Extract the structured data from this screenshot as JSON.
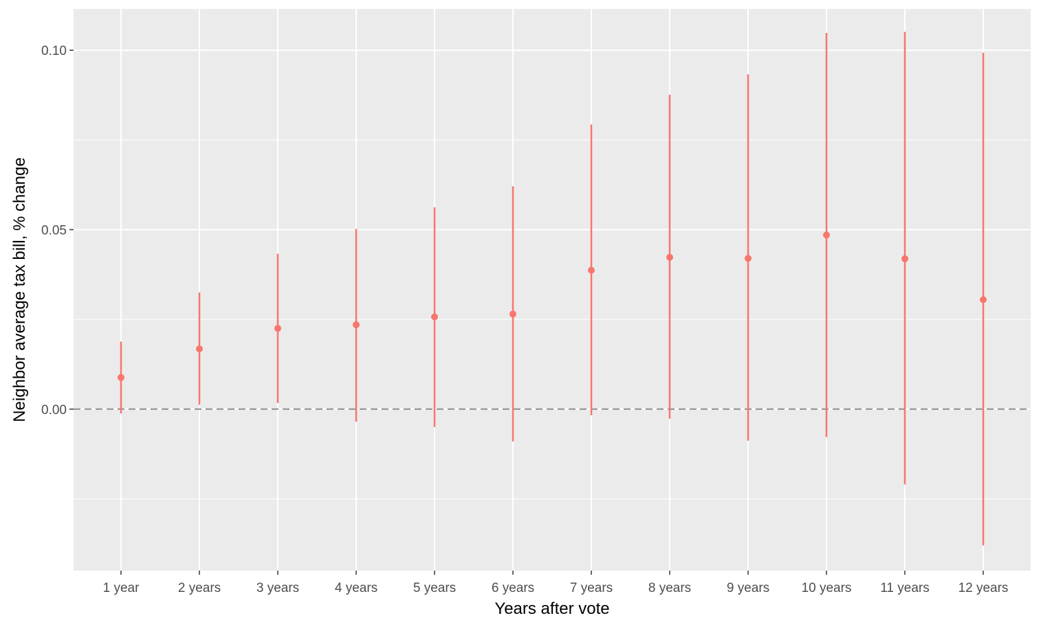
{
  "chart_data": {
    "type": "errorbar",
    "title": "",
    "xlabel": "Years after vote",
    "ylabel": "Neighbor average tax bill, % change",
    "categories": [
      "1 year",
      "2 years",
      "3 years",
      "4 years",
      "5 years",
      "6 years",
      "7 years",
      "8 years",
      "9 years",
      "10 years",
      "11 years",
      "12 years"
    ],
    "estimate": [
      0.0088,
      0.0168,
      0.0225,
      0.0235,
      0.0257,
      0.0265,
      0.0387,
      0.0423,
      0.042,
      0.0485,
      0.0419,
      0.0305
    ],
    "lower": [
      -0.0012,
      0.0012,
      0.0017,
      -0.0035,
      -0.005,
      -0.009,
      -0.0017,
      -0.0027,
      -0.0088,
      -0.0078,
      -0.021,
      -0.038
    ],
    "upper": [
      0.0188,
      0.0325,
      0.0433,
      0.0502,
      0.0562,
      0.0621,
      0.0793,
      0.0876,
      0.0933,
      0.1048,
      0.1051,
      0.0993
    ],
    "reference_line": {
      "y": 0,
      "style": "dashed"
    },
    "ylim": [
      -0.045,
      0.1115
    ],
    "yticks": [
      0.0,
      0.05,
      0.1
    ],
    "ytick_labels": [
      "0.00",
      "0.05",
      "0.10"
    ],
    "grid": true,
    "colors": {
      "series": "#F8766D",
      "panel": "#EBEBEB",
      "grid": "#FFFFFF",
      "reference": "#8C8C8C"
    }
  }
}
